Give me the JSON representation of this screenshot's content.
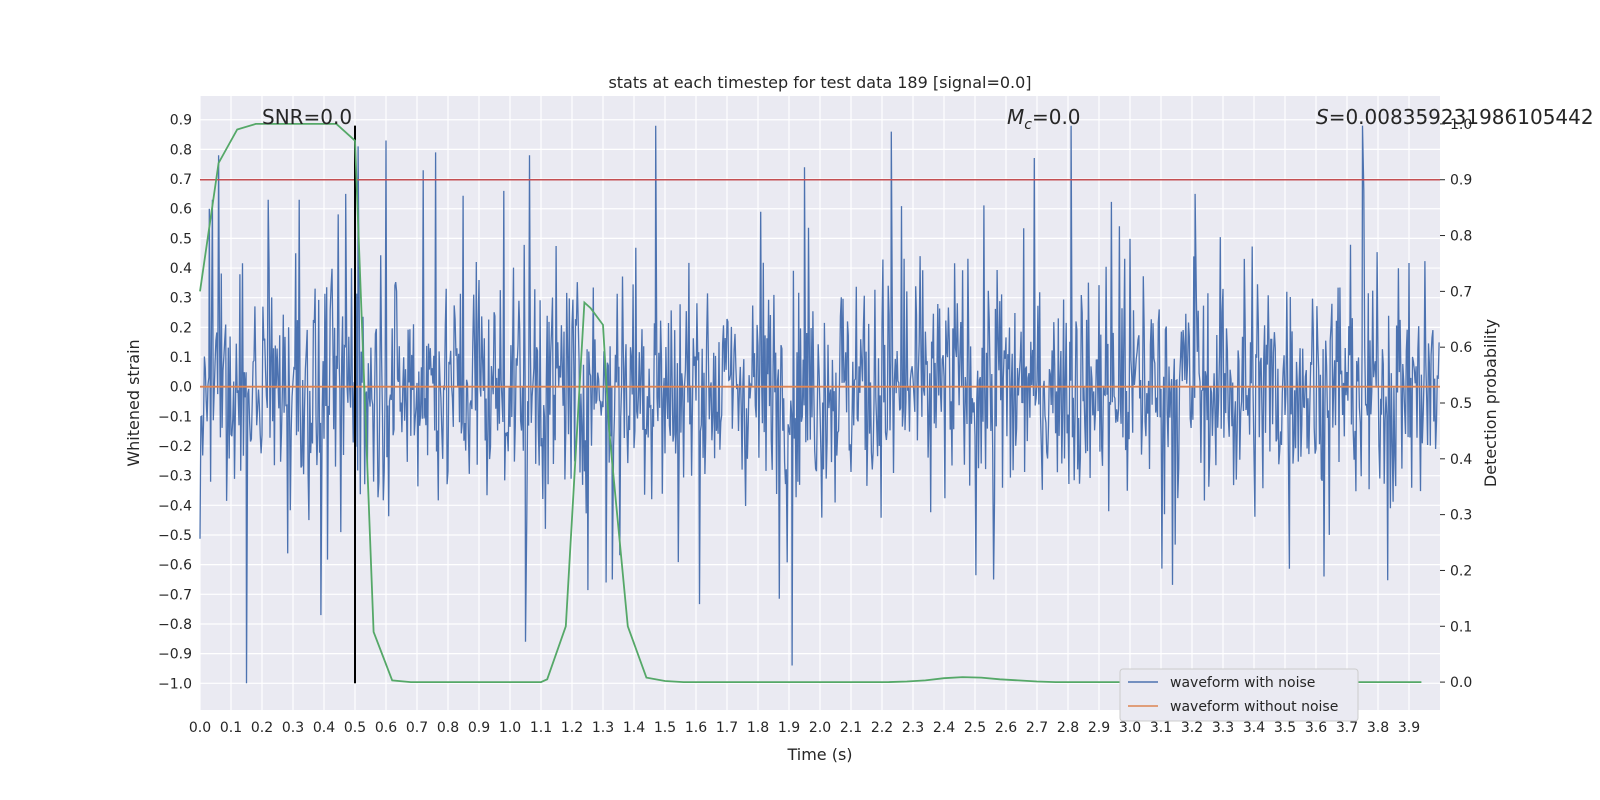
{
  "chart_data": {
    "type": "line",
    "title": "stats at each timestep for test data 189 [signal=0.0]",
    "xlabel": "Time (s)",
    "ylabel": "Whitened strain",
    "ylabel_right": "Detection probability",
    "xlim": [
      0.0,
      4.0
    ],
    "ylim": [
      -1.09,
      0.98
    ],
    "ylim_right": [
      -0.05,
      1.05
    ],
    "x_ticks": [
      "0.0",
      "0.1",
      "0.2",
      "0.3",
      "0.4",
      "0.5",
      "0.6",
      "0.7",
      "0.8",
      "0.9",
      "1.0",
      "1.1",
      "1.2",
      "1.3",
      "1.4",
      "1.5",
      "1.6",
      "1.7",
      "1.8",
      "1.9",
      "2.0",
      "2.1",
      "2.2",
      "2.3",
      "2.4",
      "2.5",
      "2.6",
      "2.7",
      "2.8",
      "2.9",
      "3.0",
      "3.1",
      "3.2",
      "3.3",
      "3.4",
      "3.5",
      "3.6",
      "3.7",
      "3.8",
      "3.9"
    ],
    "y_ticks": [
      "0.9",
      "0.8",
      "0.7",
      "0.6",
      "0.5",
      "0.4",
      "0.3",
      "0.2",
      "0.1",
      "0.0",
      "−0.1",
      "−0.2",
      "−0.3",
      "−0.4",
      "−0.5",
      "−0.6",
      "−0.7",
      "−0.8",
      "−0.9",
      "−1.0"
    ],
    "y_right_ticks": [
      "1.0",
      "0.9",
      "0.8",
      "0.7",
      "0.6",
      "0.5",
      "0.4",
      "0.3",
      "0.2",
      "0.1",
      "0.0"
    ],
    "annotations": {
      "snr": "SNR=0.0",
      "mc_symbol": "M",
      "mc_sub": "c",
      "mc_value": "=0.0",
      "s_symbol": "S",
      "s_value": "=0.008359231986105442"
    },
    "legend": {
      "position": "lower right",
      "entries": [
        "waveform with noise",
        "waveform without noise"
      ]
    },
    "colors": {
      "noise": "#4c72b0",
      "clean": "#dd8452",
      "probability": "#55a868",
      "threshold": "#c44e52",
      "marker": "#000000",
      "background": "#eaeaf2"
    },
    "threshold": 0.9,
    "marker_time": 0.5,
    "series": [
      {
        "name": "waveform with noise",
        "note_values": "dense noisy strain, amplitude spanning about -1.0 to 0.88; representative peaks",
        "peaks_x": [
          0.03,
          0.04,
          0.15,
          0.22,
          0.32,
          0.39,
          0.47,
          0.51,
          0.6,
          0.72,
          0.76,
          0.98,
          1.05,
          1.31,
          1.33,
          1.47,
          1.91,
          1.95,
          2.23,
          2.56,
          2.81,
          3.21,
          3.75
        ],
        "peaks_y": [
          0.6,
          0.63,
          -1.0,
          0.63,
          0.63,
          -0.77,
          0.65,
          0.81,
          0.83,
          0.73,
          0.79,
          0.66,
          -0.86,
          -0.66,
          -0.65,
          0.88,
          -0.94,
          0.74,
          0.86,
          -0.65,
          0.88,
          0.65,
          0.88
        ]
      },
      {
        "name": "waveform without noise",
        "x": [
          0.0,
          4.0
        ],
        "y": [
          0.0,
          0.0
        ]
      },
      {
        "name": "detection probability",
        "x": [
          0.0,
          0.06,
          0.12,
          0.18,
          0.24,
          0.3,
          0.36,
          0.42,
          0.44,
          0.5,
          0.56,
          0.62,
          0.68,
          0.74,
          0.8,
          0.86,
          0.92,
          0.98,
          1.04,
          1.1,
          1.12,
          1.18,
          1.24,
          1.26,
          1.3,
          1.32,
          1.38,
          1.44,
          1.5,
          1.56,
          1.62,
          1.68,
          1.74,
          1.8,
          1.86,
          1.92,
          1.98,
          2.04,
          2.1,
          2.16,
          2.22,
          2.28,
          2.34,
          2.4,
          2.46,
          2.52,
          2.58,
          2.64,
          2.7,
          2.76,
          2.82,
          2.88,
          2.94,
          3.0,
          3.06,
          3.12,
          3.18,
          3.24,
          3.3,
          3.36,
          3.42,
          3.48,
          3.54,
          3.6,
          3.66,
          3.72,
          3.78,
          3.84,
          3.9,
          3.94
        ],
        "y": [
          0.7,
          0.93,
          0.99,
          1.0,
          1.0,
          1.0,
          1.0,
          1.0,
          1.0,
          0.97,
          0.09,
          0.003,
          0.0,
          0.0,
          0.0,
          0.0,
          0.0,
          0.0,
          0.0,
          0.0,
          0.005,
          0.1,
          0.68,
          0.67,
          0.64,
          0.45,
          0.1,
          0.008,
          0.002,
          0.0,
          0.0,
          0.0,
          0.0,
          0.0,
          0.0,
          0.0,
          0.0,
          0.0,
          0.0,
          0.0,
          0.0,
          0.001,
          0.003,
          0.007,
          0.009,
          0.008,
          0.005,
          0.003,
          0.001,
          0.0,
          0.0,
          0.0,
          0.0,
          0.0,
          0.0,
          0.0,
          0.0,
          0.0,
          0.0,
          0.0,
          0.0,
          0.0,
          0.0,
          0.0,
          0.0,
          0.0,
          0.0,
          0.0,
          0.0,
          0.0
        ]
      }
    ]
  }
}
